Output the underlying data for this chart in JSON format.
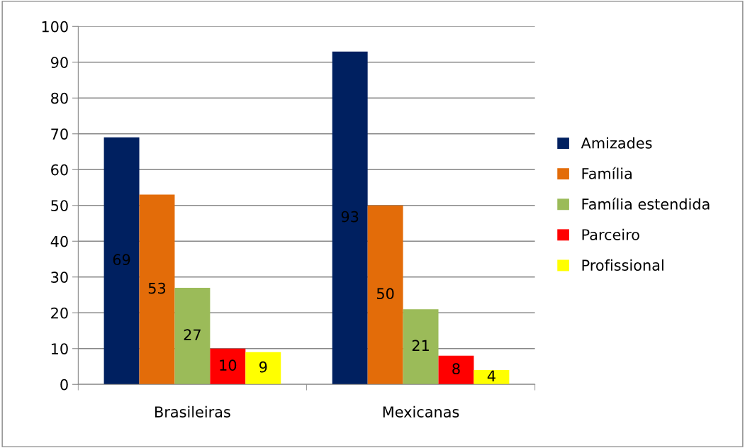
{
  "chart_data": {
    "type": "bar",
    "categories": [
      "Brasileiras",
      "Mexicanas"
    ],
    "series": [
      {
        "name": "Amizades",
        "color": "#002060",
        "values": [
          69,
          93
        ]
      },
      {
        "name": "Família",
        "color": "#e36c09",
        "values": [
          53,
          50
        ]
      },
      {
        "name": "Família estendida",
        "color": "#9bbb59",
        "values": [
          27,
          21
        ]
      },
      {
        "name": "Parceiro",
        "color": "#ff0000",
        "values": [
          10,
          8
        ]
      },
      {
        "name": "Profissional",
        "color": "#ffff00",
        "values": [
          9,
          4
        ]
      }
    ],
    "ylim": [
      0,
      100
    ],
    "yticks": [
      0,
      10,
      20,
      30,
      40,
      50,
      60,
      70,
      80,
      90,
      100
    ],
    "grid": "y",
    "legend": "right",
    "data_labels": true
  }
}
